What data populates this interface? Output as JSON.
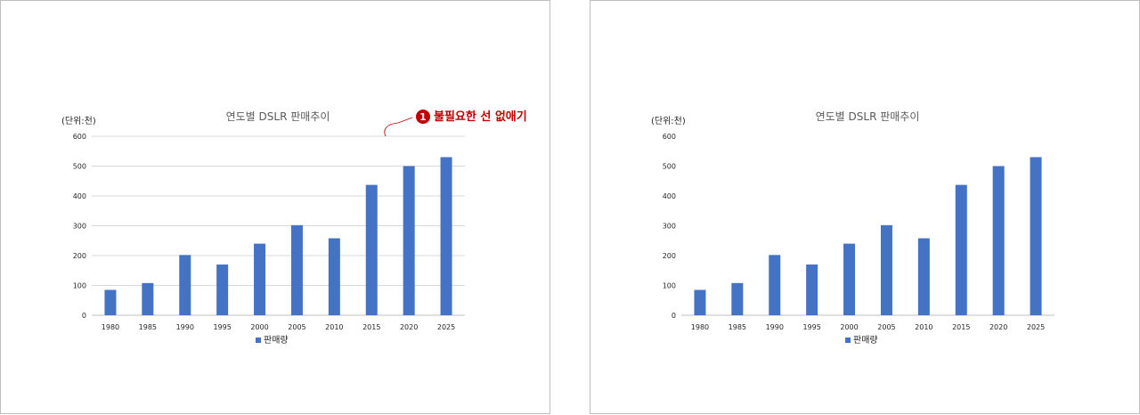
{
  "chart_data": [
    {
      "type": "bar",
      "title": "연도별 DSLR 판매추이",
      "unit_label": "(단위:천)",
      "categories": [
        "1980",
        "1985",
        "1990",
        "1995",
        "2000",
        "2005",
        "2010",
        "2015",
        "2020",
        "2025"
      ],
      "series": [
        {
          "name": "판매량",
          "values": [
            85,
            108,
            202,
            170,
            240,
            302,
            258,
            437,
            500,
            530
          ],
          "color": "#4472c4"
        }
      ],
      "ylim": [
        0,
        600
      ],
      "yticks": [
        0,
        100,
        200,
        300,
        400,
        500,
        600
      ],
      "grid": true,
      "legend": "bottom",
      "annotation": {
        "number": "1",
        "text": "불필요한 선 없애기",
        "color": "#c00000"
      }
    },
    {
      "type": "bar",
      "title": "연도별 DSLR 판매추이",
      "unit_label": "(단위:천)",
      "categories": [
        "1980",
        "1985",
        "1990",
        "1995",
        "2000",
        "2005",
        "2010",
        "2015",
        "2020",
        "2025"
      ],
      "series": [
        {
          "name": "판매량",
          "values": [
            85,
            108,
            202,
            170,
            240,
            302,
            258,
            437,
            500,
            530
          ],
          "color": "#4472c4"
        }
      ],
      "ylim": [
        0,
        600
      ],
      "yticks": [
        0,
        100,
        200,
        300,
        400,
        500,
        600
      ],
      "grid": false,
      "legend": "bottom"
    }
  ]
}
